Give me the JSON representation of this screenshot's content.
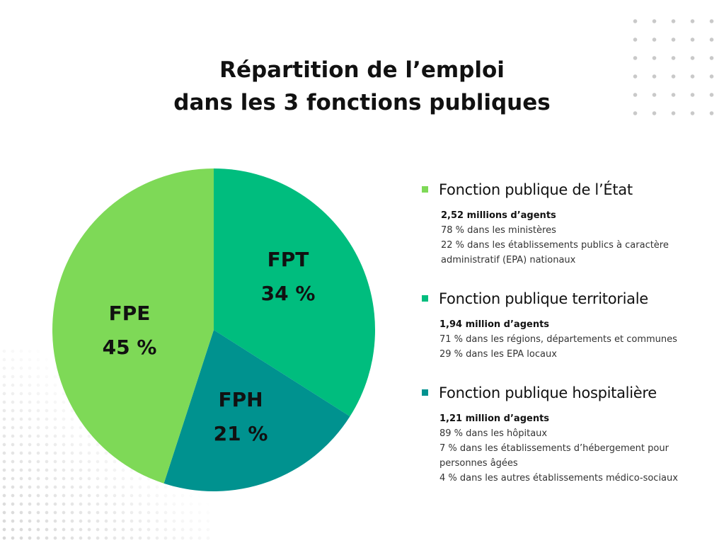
{
  "title": [
    "Répartition de l’emploi",
    "dans les 3 fonctions publiques"
  ],
  "chart_data": {
    "type": "pie",
    "title": "Répartition de l’emploi dans les 3 fonctions publiques",
    "start": "top",
    "direction": "clockwise",
    "slices": [
      {
        "label": "FPT",
        "value": 34,
        "value_label": "34 %",
        "color": "#00BD7E"
      },
      {
        "label": "FPH",
        "value": 21,
        "value_label": "21 %",
        "color": "#00928F"
      },
      {
        "label": "FPE",
        "value": 45,
        "value_label": "45 %",
        "color": "#7ED957"
      }
    ]
  },
  "legend": [
    {
      "name": "Fonction publique de l’État",
      "color": "#7ED957",
      "lines": [
        "2,52 millions d’agents",
        "78 % dans les ministères",
        "22 % dans les établissements publics à caractère administratif (EPA) nationaux"
      ]
    },
    {
      "name": "Fonction publique territoriale",
      "color": "#00BD7E",
      "lines": [
        "1,94 million d’agents",
        "71 % dans les régions, départements et communes",
        "29 % dans les EPA locaux"
      ]
    },
    {
      "name": "Fonction publique hospitalière",
      "color": "#00928F",
      "lines": [
        "1,21 million d’agents",
        "89 % dans les hôpitaux",
        "7 % dans les établissements d’hébergement pour personnes âgées",
        "4 % dans les autres établissements médico-sociaux"
      ]
    }
  ]
}
